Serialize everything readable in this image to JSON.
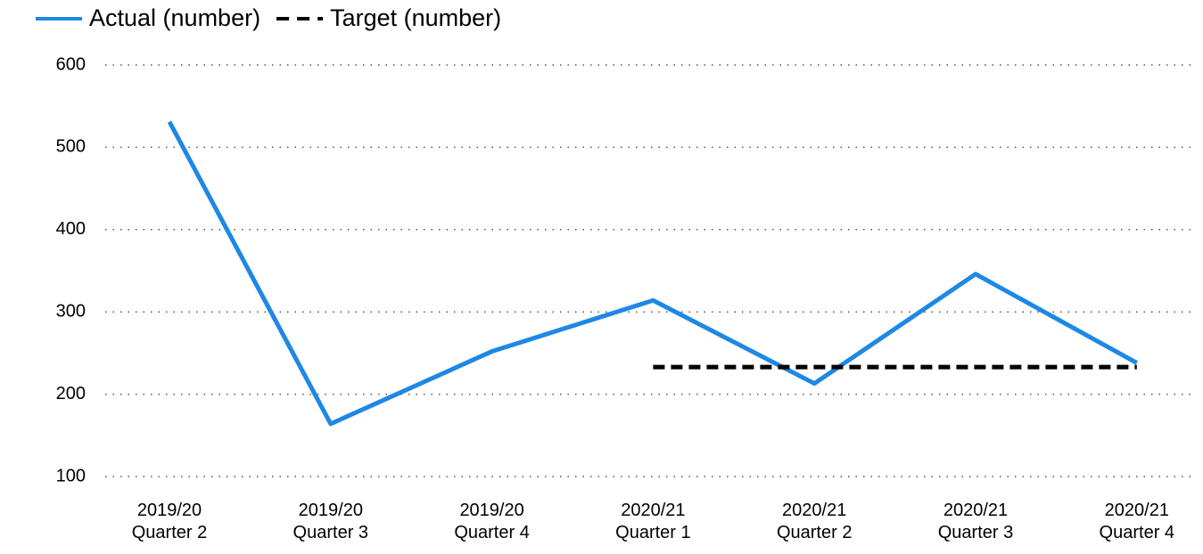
{
  "chart_data": {
    "type": "line",
    "categories": [
      "2019/20\nQuarter 2",
      "2019/20\nQuarter 3",
      "2019/20\nQuarter 4",
      "2020/21\nQuarter 1",
      "2020/21\nQuarter 2",
      "2020/21\nQuarter 3",
      "2020/21\nQuarter 4"
    ],
    "series": [
      {
        "name": "Actual (number)",
        "color": "#1e88e5",
        "values": [
          531,
          164,
          252,
          314,
          213,
          346,
          238
        ]
      },
      {
        "name": "Target (number)",
        "color": "#000000",
        "dashed": true,
        "values": [
          null,
          null,
          null,
          233,
          233,
          233,
          233
        ]
      }
    ],
    "ylim": [
      100,
      600
    ],
    "yticks": [
      100,
      200,
      300,
      400,
      500,
      600
    ],
    "grid": true,
    "legend": "top-left"
  }
}
